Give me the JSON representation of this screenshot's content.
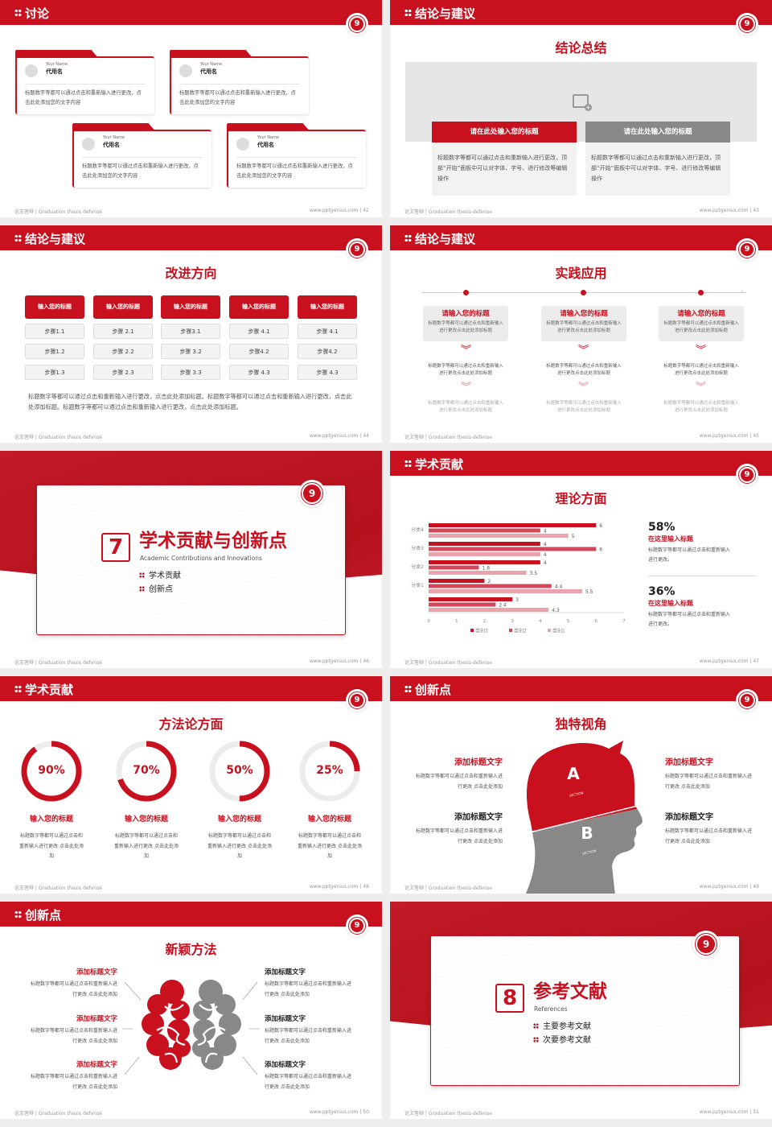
{
  "footer": {
    "left": "论文答辩 | Graduation thesis defense",
    "site": "www.pptgenius.com"
  },
  "colors": {
    "accent": "#c8101e",
    "gray": "#888888",
    "light": "#e8919a"
  },
  "slides": [
    {
      "page": "42",
      "header": "讨论",
      "cards": [
        {
          "en": "Your Name",
          "name": "代用名",
          "text": "标题数字等都可以通过点击和重新输入进行更改，点击此处添加您的文字内容"
        },
        {
          "en": "Your Name",
          "name": "代用名",
          "text": "标题数字等都可以通过点击和重新输入进行更改，点击此处添加您的文字内容"
        },
        {
          "en": "Your Name",
          "name": "代用名",
          "text": "标题数字等都可以通过点击和重新输入进行更改，点击此处添加您的文字内容"
        },
        {
          "en": "Your Name",
          "name": "代用名",
          "text": "标题数字等都可以通过点击和重新输入进行更改，点击此处添加您的文字内容"
        }
      ]
    },
    {
      "page": "43",
      "header": "结论与建议",
      "title": "结论总结",
      "image_icon": "image-add-icon",
      "boxes": [
        {
          "heading": "请在此处输入您的标题",
          "text": "标题数字等都可以通过点击和重新输入进行更改，顶部“开始”面板中可以对字体、字号、进行修改等编辑操作"
        },
        {
          "heading": "请在此处输入您的标题",
          "text": "标题数字等都可以通过点击和重新输入进行更改，顶部“开始”面板中可以对字体、字号、进行修改等编辑操作"
        }
      ]
    },
    {
      "page": "44",
      "header": "结论与建议",
      "title": "改进方向",
      "columns": [
        {
          "heading": "输入您的标题",
          "steps": [
            "步骤1.1",
            "步骤1.2",
            "步骤1.3"
          ]
        },
        {
          "heading": "输入您的标题",
          "steps": [
            "步骤 2.1",
            "步骤 2.2",
            "步骤 2.3"
          ]
        },
        {
          "heading": "输入您的标题",
          "steps": [
            "步骤3.1",
            "步骤 3.2",
            "步骤 3.3"
          ]
        },
        {
          "heading": "输入您的标题",
          "steps": [
            "步骤 4.1",
            "步骤4.2",
            "步骤 4.3"
          ]
        },
        {
          "heading": "输入您的标题",
          "steps": [
            "步骤 4.1",
            "步骤4.2",
            "步骤 4.3"
          ]
        }
      ],
      "paragraph": "标题数字等都可以通过点击和重新输入进行更改，点击此处添加标题。标题数字等都可以通过点击和重新输入进行更改，点击此处添加标题。标题数字等都可以通过点击和重新输入进行更改，点击此处添加标题。"
    },
    {
      "page": "45",
      "header": "结论与建议",
      "title": "实践应用",
      "items": [
        {
          "heading": "请输入您的标题",
          "text": "标题数字等都可以通过点击和重新输入进行更改点击此处添加标题",
          "text2": "标题数字等都可以通过点击和重新输入进行更改点击此处添加标题",
          "text3": "标题数字等都可以通过点击和重新输入进行更改点击此处添加标题"
        },
        {
          "heading": "请输入您的标题",
          "text": "标题数字等都可以通过点击和重新输入进行更改点击此处添加标题",
          "text2": "标题数字等都可以通过点击和重新输入进行更改点击此处添加标题",
          "text3": "标题数字等都可以通过点击和重新输入进行更改点击此处添加标题"
        },
        {
          "heading": "请输入您的标题",
          "text": "标题数字等都可以通过点击和重新输入进行更改点击此处添加标题",
          "text2": "标题数字等都可以通过点击和重新输入进行更改点击此处添加标题",
          "text3": "标题数字等都可以通过点击和重新输入进行更改点击此处添加标题"
        }
      ]
    },
    {
      "page": "46",
      "number": "7",
      "title": "学术贡献与创新点",
      "subtitle": "Academic Contributions and Innovations",
      "items": [
        "学术贡献",
        "创新点"
      ]
    },
    {
      "page": "47",
      "header": "学术贡献",
      "title": "理论方面",
      "stats": [
        {
          "value": "58%",
          "heading": "在这里输入标题",
          "text": "标题数字等都可以通过点击和重新输入进行更改。"
        },
        {
          "value": "36%",
          "heading": "在这里输入标题",
          "text": "标题数字等都可以通过点击和重新输入进行更改。"
        }
      ]
    },
    {
      "page": "48",
      "header": "学术贡献",
      "title": "方法论方面",
      "rings": [
        {
          "value": 90,
          "label": "90%",
          "heading": "输入您的标题",
          "text": "标题数字等都可以通过点击和重新输入进行更改 点击此处添加"
        },
        {
          "value": 70,
          "label": "70%",
          "heading": "输入您的标题",
          "text": "标题数字等都可以通过点击和重新输入进行更改 点击此处添加"
        },
        {
          "value": 50,
          "label": "50%",
          "heading": "输入您的标题",
          "text": "标题数字等都可以通过点击和重新输入进行更改 点击此处添加"
        },
        {
          "value": 25,
          "label": "25%",
          "heading": "输入您的标题",
          "text": "标题数字等都可以通过点击和重新输入进行更改 点击此处添加"
        }
      ]
    },
    {
      "page": "49",
      "header": "创新点",
      "title": "独特视角",
      "head": {
        "a": "A",
        "b": "B",
        "section": "SECTION"
      },
      "blocks": [
        {
          "heading": "添加标题文字",
          "text": "标题数字等都可以通过点击和重新输入进行更改 点击此处添加",
          "red": true
        },
        {
          "heading": "添加标题文字",
          "text": "标题数字等都可以通过点击和重新输入进行更改 点击此处添加",
          "red": false
        },
        {
          "heading": "添加标题文字",
          "text": "标题数字等都可以通过点击和重新输入进行更改 点击此处添加",
          "red": true
        },
        {
          "heading": "添加标题文字",
          "text": "标题数字等都可以通过点击和重新输入进行更改 点击此处添加",
          "red": false
        }
      ]
    },
    {
      "page": "50",
      "header": "创新点",
      "title": "新颖方法",
      "blocks": [
        {
          "heading": "添加标题文字",
          "text": "标题数字等都可以通过点击和重新输入进行更改 点击此处添加"
        },
        {
          "heading": "添加标题文字",
          "text": "标题数字等都可以通过点击和重新输入进行更改 点击此处添加"
        },
        {
          "heading": "添加标题文字",
          "text": "标题数字等都可以通过点击和重新输入进行更改 点击此处添加"
        },
        {
          "heading": "添加标题文字",
          "text": "标题数字等都可以通过点击和重新输入进行更改 点击此处添加"
        },
        {
          "heading": "添加标题文字",
          "text": "标题数字等都可以通过点击和重新输入进行更改 点击此处添加"
        },
        {
          "heading": "添加标题文字",
          "text": "标题数字等都可以通过点击和重新输入进行更改 点击此处添加"
        }
      ]
    },
    {
      "page": "51",
      "number": "8",
      "title": "参考文献",
      "subtitle": "References",
      "items": [
        "主要参考文献",
        "次要参考文献"
      ]
    }
  ],
  "chart_data": {
    "type": "bar",
    "orientation": "horizontal",
    "categories": [
      "分类4",
      "分类3",
      "分类2",
      "分类1",
      ""
    ],
    "series": [
      {
        "name": "类别3",
        "color": "#c8101e",
        "values": [
          6,
          4,
          4,
          2,
          3
        ]
      },
      {
        "name": "类别2",
        "color": "#d0485a",
        "values": [
          4,
          6,
          1.8,
          4.4,
          2.4
        ]
      },
      {
        "name": "类别1",
        "color": "#eba3ab",
        "values": [
          5,
          4,
          3.5,
          5.5,
          4.3
        ]
      }
    ],
    "xlim": [
      0,
      7
    ],
    "xticks": [
      "0",
      "1",
      "2",
      "3",
      "4",
      "5",
      "6",
      "7"
    ],
    "data_labels": true,
    "legend": "bottom",
    "grid": false
  }
}
